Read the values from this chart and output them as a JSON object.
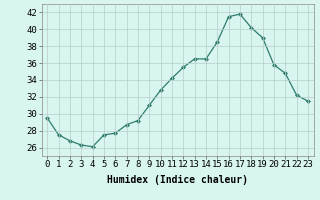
{
  "x": [
    0,
    1,
    2,
    3,
    4,
    5,
    6,
    7,
    8,
    9,
    10,
    11,
    12,
    13,
    14,
    15,
    16,
    17,
    18,
    19,
    20,
    21,
    22,
    23
  ],
  "y": [
    29.5,
    27.5,
    26.8,
    26.3,
    26.1,
    27.5,
    27.7,
    28.7,
    29.2,
    31.0,
    32.8,
    34.2,
    35.5,
    36.5,
    36.5,
    38.5,
    41.5,
    41.8,
    40.2,
    39.0,
    35.8,
    34.8,
    32.2,
    31.5
  ],
  "line_color": "#2e7d6e",
  "marker": "D",
  "marker_size": 2,
  "background_color": "#d8f5f0",
  "grid_color": "#b8ccc8",
  "xlabel": "Humidex (Indice chaleur)",
  "ylim": [
    25.0,
    43.0
  ],
  "xlim": [
    -0.5,
    23.5
  ],
  "yticks": [
    26,
    28,
    30,
    32,
    34,
    36,
    38,
    40,
    42
  ],
  "xticks": [
    0,
    1,
    2,
    3,
    4,
    5,
    6,
    7,
    8,
    9,
    10,
    11,
    12,
    13,
    14,
    15,
    16,
    17,
    18,
    19,
    20,
    21,
    22,
    23
  ],
  "xlabel_fontsize": 7,
  "tick_fontsize": 6.5
}
